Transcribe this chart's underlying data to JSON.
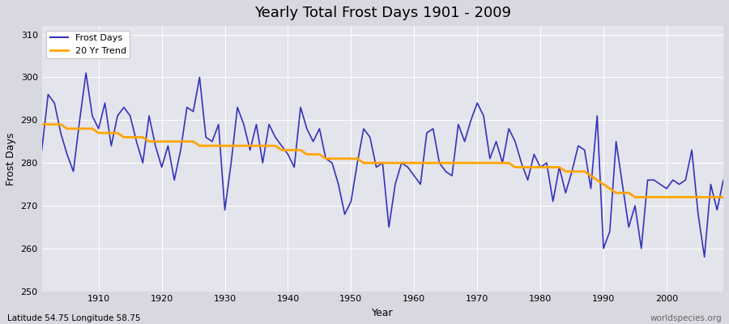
{
  "title": "Yearly Total Frost Days 1901 - 2009",
  "xlabel": "Year",
  "ylabel": "Frost Days",
  "subtitle_left": "Latitude 54.75 Longitude 58.75",
  "subtitle_right": "worldspecies.org",
  "legend_labels": [
    "Frost Days",
    "20 Yr Trend"
  ],
  "line_color": "#3333bb",
  "trend_color": "#FFA500",
  "fig_bg_color": "#d8d8e0",
  "plot_bg_color": "#e4e4ec",
  "ylim": [
    250,
    312
  ],
  "yticks": [
    250,
    260,
    270,
    280,
    290,
    300,
    310
  ],
  "years": [
    1901,
    1902,
    1903,
    1904,
    1905,
    1906,
    1907,
    1908,
    1909,
    1910,
    1911,
    1912,
    1913,
    1914,
    1915,
    1916,
    1917,
    1918,
    1919,
    1920,
    1921,
    1922,
    1923,
    1924,
    1925,
    1926,
    1927,
    1928,
    1929,
    1930,
    1931,
    1932,
    1933,
    1934,
    1935,
    1936,
    1937,
    1938,
    1939,
    1940,
    1941,
    1942,
    1943,
    1944,
    1945,
    1946,
    1947,
    1948,
    1949,
    1950,
    1951,
    1952,
    1953,
    1954,
    1955,
    1956,
    1957,
    1958,
    1959,
    1960,
    1961,
    1962,
    1963,
    1964,
    1965,
    1966,
    1967,
    1968,
    1969,
    1970,
    1971,
    1972,
    1973,
    1974,
    1975,
    1976,
    1977,
    1978,
    1979,
    1980,
    1981,
    1982,
    1983,
    1984,
    1985,
    1986,
    1987,
    1988,
    1989,
    1990,
    1991,
    1992,
    1993,
    1994,
    1995,
    1996,
    1997,
    1998,
    1999,
    2000,
    2001,
    2002,
    2003,
    2004,
    2005,
    2006,
    2007,
    2008,
    2009
  ],
  "frost_days": [
    283,
    296,
    294,
    287,
    282,
    278,
    290,
    301,
    291,
    288,
    294,
    284,
    291,
    293,
    291,
    285,
    280,
    291,
    284,
    279,
    284,
    276,
    283,
    293,
    292,
    300,
    286,
    285,
    289,
    269,
    280,
    293,
    289,
    283,
    289,
    280,
    289,
    286,
    284,
    282,
    279,
    293,
    288,
    285,
    288,
    281,
    280,
    275,
    268,
    271,
    280,
    288,
    286,
    279,
    280,
    265,
    275,
    280,
    279,
    277,
    275,
    287,
    288,
    280,
    278,
    277,
    289,
    285,
    290,
    294,
    291,
    281,
    285,
    280,
    288,
    285,
    280,
    276,
    282,
    279,
    280,
    271,
    279,
    273,
    278,
    284,
    283,
    274,
    291,
    260,
    264,
    285,
    275,
    265,
    270,
    260,
    276,
    276,
    275,
    274,
    276,
    275,
    276,
    283,
    268,
    258,
    275,
    269,
    276
  ],
  "trend": [
    289,
    289,
    289,
    289,
    288,
    288,
    288,
    288,
    288,
    287,
    287,
    287,
    287,
    286,
    286,
    286,
    286,
    285,
    285,
    285,
    285,
    285,
    285,
    285,
    285,
    284,
    284,
    284,
    284,
    284,
    284,
    284,
    284,
    284,
    284,
    284,
    284,
    284,
    283,
    283,
    283,
    283,
    282,
    282,
    282,
    281,
    281,
    281,
    281,
    281,
    281,
    280,
    280,
    280,
    280,
    280,
    280,
    280,
    280,
    280,
    280,
    280,
    280,
    280,
    280,
    280,
    280,
    280,
    280,
    280,
    280,
    280,
    280,
    280,
    280,
    279,
    279,
    279,
    279,
    279,
    279,
    279,
    279,
    278,
    278,
    278,
    278,
    277,
    276,
    275,
    274,
    273,
    273,
    273,
    272,
    272,
    272,
    272,
    272,
    272,
    272,
    272,
    272,
    272,
    272,
    272,
    272,
    272,
    272
  ]
}
